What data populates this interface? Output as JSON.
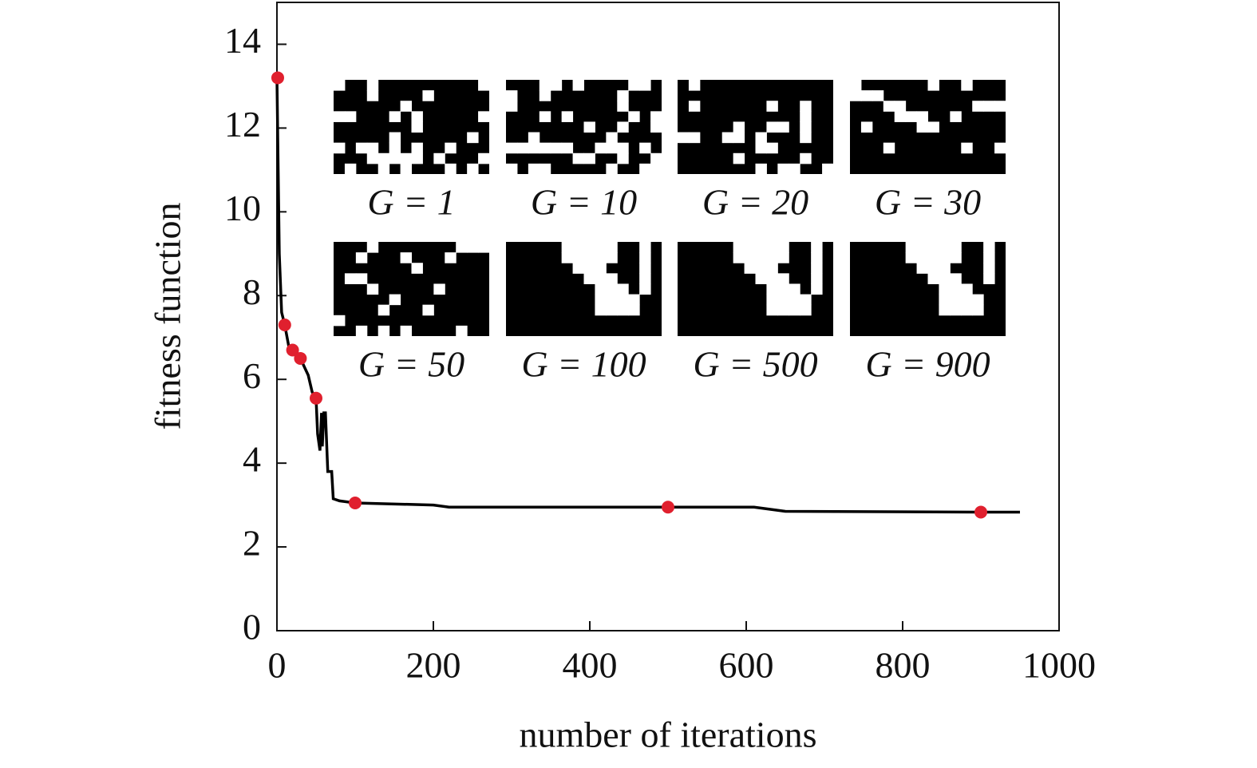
{
  "chart_data": {
    "type": "line",
    "x_label": "number of iterations",
    "y_label": "fitness function",
    "xlim": [
      0,
      1000
    ],
    "ylim": [
      0,
      15
    ],
    "xticks": [
      0,
      200,
      400,
      600,
      800,
      1000
    ],
    "yticks": [
      0,
      2,
      4,
      6,
      8,
      10,
      12,
      14
    ],
    "line": {
      "color": "#000000",
      "x": [
        0,
        3,
        6,
        10,
        15,
        20,
        25,
        30,
        35,
        40,
        45,
        50,
        52,
        55,
        57,
        58,
        60,
        62,
        65,
        70,
        72,
        80,
        100,
        200,
        220,
        400,
        500,
        610,
        650,
        900,
        950
      ],
      "values": [
        13.2,
        9,
        7.6,
        7.3,
        6.8,
        6.7,
        6.6,
        6.5,
        6.3,
        6.1,
        5.7,
        5.55,
        4.7,
        4.3,
        5.2,
        4.4,
        5.2,
        5.2,
        3.8,
        3.8,
        3.15,
        3.1,
        3.05,
        3.0,
        2.95,
        2.95,
        2.95,
        2.95,
        2.85,
        2.83,
        2.83
      ]
    },
    "points": {
      "color": "#e0202e",
      "x": [
        1,
        10,
        20,
        30,
        50,
        100,
        500,
        900
      ],
      "values": [
        13.2,
        7.3,
        6.7,
        6.5,
        5.55,
        3.05,
        2.95,
        2.83
      ]
    },
    "insets": [
      "G = 1",
      "G = 10",
      "G = 20",
      "G = 30",
      "G = 50",
      "G = 100",
      "G = 500",
      "G = 900"
    ]
  }
}
